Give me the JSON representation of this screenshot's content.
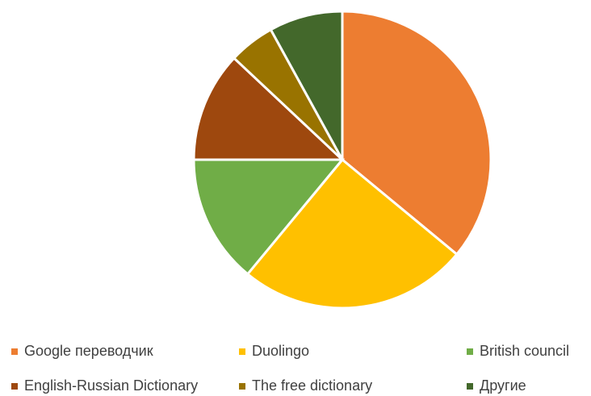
{
  "chart_data": {
    "type": "pie",
    "categories": [
      "Google переводчик",
      "Duolingo",
      "British council",
      "English-Russian Dictionary",
      "The free dictionary",
      "Другие"
    ],
    "values": [
      36,
      25,
      14,
      12,
      5,
      8
    ],
    "colors": [
      "#ED7D31",
      "#FFC000",
      "#70AD47",
      "#9E480E",
      "#997300",
      "#43682B"
    ],
    "legend": "bottom"
  }
}
